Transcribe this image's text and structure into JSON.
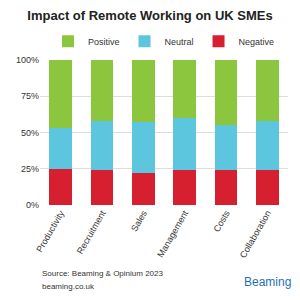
{
  "chart_data": {
    "type": "bar",
    "title": "Impact of Remote Working on UK SMEs",
    "categories": [
      "Productivity",
      "Recruitment",
      "Sales",
      "Management",
      "Costs",
      "Collaboration"
    ],
    "series": [
      {
        "name": "Negative",
        "color": "#d6202f",
        "values": [
          25,
          24,
          22,
          24,
          24,
          24
        ]
      },
      {
        "name": "Neutral",
        "color": "#5dc6df",
        "values": [
          28,
          34,
          35,
          36,
          31,
          34
        ]
      },
      {
        "name": "Positive",
        "color": "#8cc63e",
        "values": [
          47,
          42,
          43,
          40,
          45,
          42
        ]
      }
    ],
    "stacked": true,
    "ylim": [
      0,
      100
    ],
    "yticks": [
      {
        "value": 0,
        "label": "0%"
      },
      {
        "value": 25,
        "label": "25%"
      },
      {
        "value": 50,
        "label": "50%"
      },
      {
        "value": 75,
        "label": "75%"
      },
      {
        "value": 100,
        "label": "100%"
      }
    ],
    "grid": true,
    "legend": "top",
    "annotations": [
      "Source: Beaming & Opinium 2023",
      "beaming.co.uk",
      "Beaming"
    ]
  }
}
